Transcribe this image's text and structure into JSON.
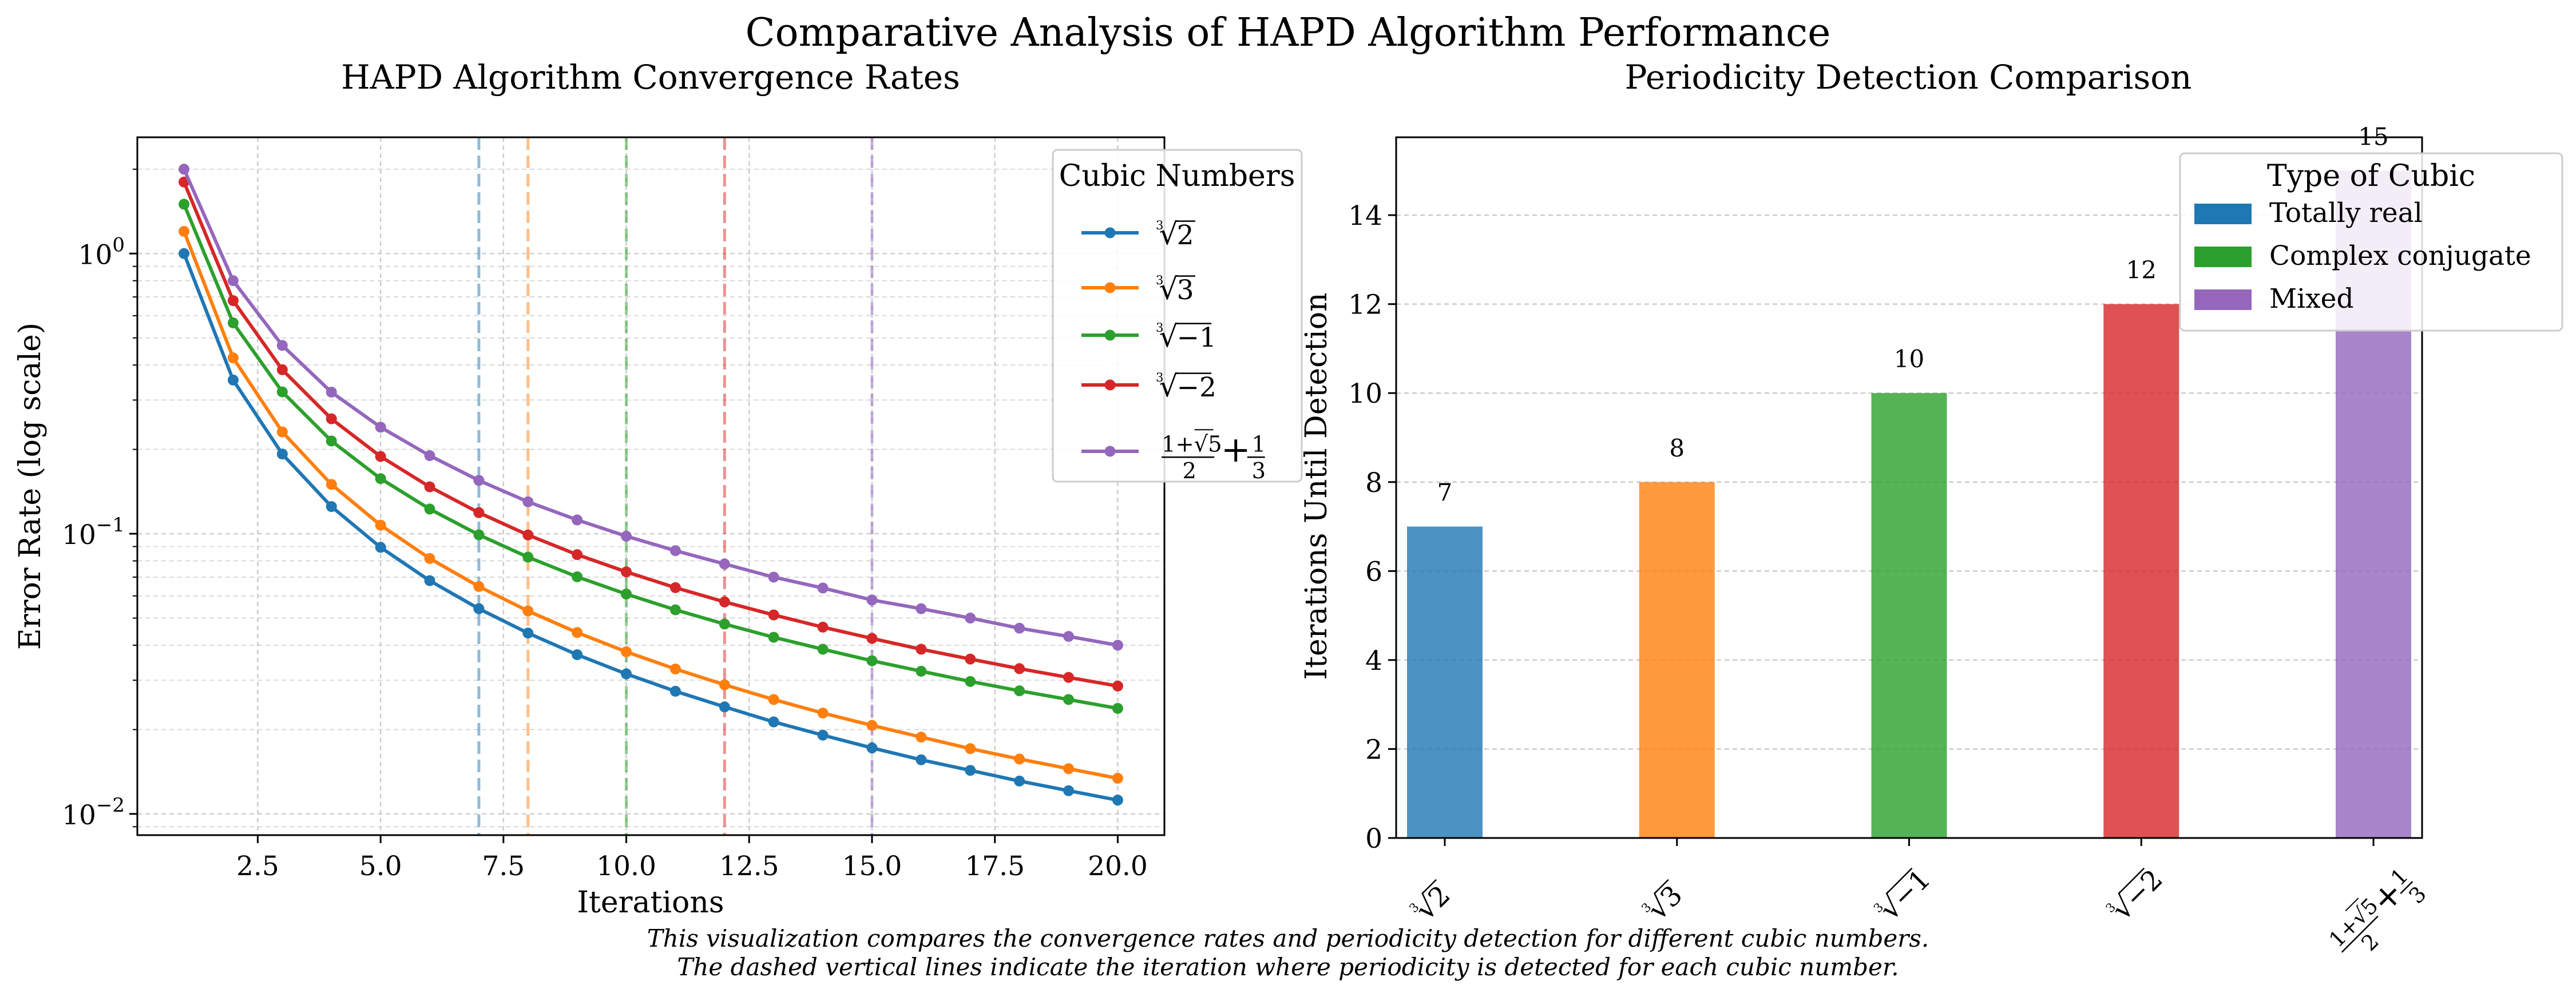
{
  "figure": {
    "title": "Comparative Analysis of HAPD Algorithm Performance",
    "caption_lines": [
      "This visualization compares the convergence rates and periodicity detection for different cubic numbers.",
      "The dashed vertical lines indicate the iteration where periodicity is detected for each cubic number."
    ]
  },
  "chart_data": [
    {
      "type": "line",
      "title": "HAPD Algorithm Convergence Rates",
      "xlabel": "Iterations",
      "ylabel": "Error Rate (log scale)",
      "yscale": "log",
      "xlim": [
        0.05,
        20.95
      ],
      "ylim": [
        0.0084,
        2.6
      ],
      "x_ticks": [
        2.5,
        5.0,
        7.5,
        10.0,
        12.5,
        15.0,
        17.5,
        20.0
      ],
      "x_tick_labels": [
        "2.5",
        "5.0",
        "7.5",
        "10.0",
        "12.5",
        "15.0",
        "17.5",
        "20.0"
      ],
      "y_ticks": [
        0.01,
        0.1,
        1
      ],
      "y_tick_labels": [
        [
          "10",
          "−2"
        ],
        [
          "10",
          "−1"
        ],
        [
          "10",
          "0"
        ]
      ],
      "grid": true,
      "legend": {
        "title": "Cubic Numbers",
        "placement": "upper-right, outside"
      },
      "x": [
        1,
        2,
        3,
        4,
        5,
        6,
        7,
        8,
        9,
        10,
        11,
        12,
        13,
        14,
        15,
        16,
        17,
        18,
        19,
        20
      ],
      "series": [
        {
          "name": "∛2",
          "radicand": "2",
          "color": "#1f77b4",
          "detected_at": 7,
          "values": [
            1.0,
            0.3536,
            0.1925,
            0.125,
            0.0894,
            0.068,
            0.054,
            0.0442,
            0.037,
            0.0316,
            0.0274,
            0.0241,
            0.0213,
            0.0191,
            0.0172,
            0.0156,
            0.0143,
            0.0131,
            0.0121,
            0.0112
          ]
        },
        {
          "name": "∛3",
          "radicand": "3",
          "color": "#ff7f0e",
          "detected_at": 8,
          "values": [
            1.2,
            0.4243,
            0.2309,
            0.15,
            0.1073,
            0.0816,
            0.0648,
            0.053,
            0.0444,
            0.0379,
            0.0329,
            0.0289,
            0.0256,
            0.0229,
            0.0207,
            0.0188,
            0.0171,
            0.0157,
            0.0145,
            0.0134
          ]
        },
        {
          "name": "∛−1",
          "radicand": "−1",
          "color": "#2ca02c",
          "detected_at": 10,
          "values": [
            1.5,
            0.5657,
            0.3208,
            0.2143,
            0.1573,
            0.1225,
            0.0991,
            0.0825,
            0.0702,
            0.0609,
            0.0535,
            0.0476,
            0.0427,
            0.0387,
            0.0352,
            0.0323,
            0.0297,
            0.0275,
            0.0256,
            0.0238
          ]
        },
        {
          "name": "∛−2",
          "radicand": "−2",
          "color": "#d62728",
          "detected_at": 12,
          "values": [
            1.8,
            0.6789,
            0.3849,
            0.2571,
            0.1887,
            0.147,
            0.1189,
            0.099,
            0.0842,
            0.0731,
            0.0642,
            0.0571,
            0.0513,
            0.0464,
            0.0423,
            0.0387,
            0.0357,
            0.033,
            0.0307,
            0.0286
          ]
        },
        {
          "name": "(1+√5)/2 + 1/3",
          "color": "#9467bd",
          "detected_at": 15,
          "values": [
            2.0,
            0.8,
            0.47,
            0.32,
            0.24,
            0.19,
            0.155,
            0.13,
            0.112,
            0.098,
            0.087,
            0.078,
            0.07,
            0.064,
            0.058,
            0.054,
            0.05,
            0.046,
            0.043,
            0.04
          ]
        }
      ]
    },
    {
      "type": "bar",
      "title": "Periodicity Detection Comparison",
      "xlabel": "",
      "ylabel": "Iterations Until Detection",
      "ylim": [
        0,
        15.75
      ],
      "y_ticks": [
        0,
        2,
        4,
        6,
        8,
        10,
        12,
        14
      ],
      "grid": true,
      "legend": {
        "title": "Type of Cubic",
        "placement": "upper-right",
        "entries": [
          {
            "label": "Totally real",
            "color": "#1f77b4"
          },
          {
            "label": "Complex conjugate",
            "color": "#2ca02c"
          },
          {
            "label": "Mixed",
            "color": "#9467bd"
          }
        ]
      },
      "categories": [
        "∛2",
        "∛3",
        "∛−1",
        "∛−2",
        "(1+√5)/2 + 1/3"
      ],
      "values": [
        7,
        8,
        10,
        12,
        15
      ],
      "colors": [
        "#1f77b4",
        "#ff7f0e",
        "#2ca02c",
        "#d62728",
        "#9467bd"
      ]
    }
  ]
}
